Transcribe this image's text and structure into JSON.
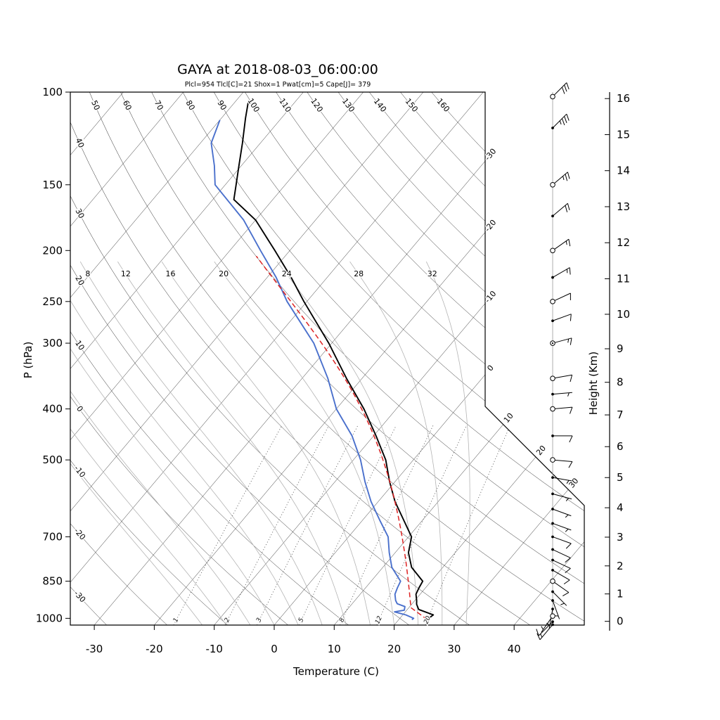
{
  "chart_data": {
    "type": "skewt_log_p",
    "title": "GAYA at 2018-08-03_06:00:00",
    "subtitle": "Plcl=954 Tlcl[C]=21 Shox=1 Pwat[cm]=5 Cape[J]= 379",
    "pressure_axis_label": "P (hPa)",
    "temperature_axis_label": "Temperature (C)",
    "height_axis_label": "Height (Km)",
    "pressure_ticks": [
      100,
      150,
      200,
      250,
      300,
      400,
      500,
      700,
      850,
      1000
    ],
    "temperature_ticks": [
      -30,
      -20,
      -10,
      0,
      10,
      20,
      30,
      40
    ],
    "height_ticks": [
      0,
      1,
      2,
      3,
      4,
      5,
      6,
      7,
      8,
      9,
      10,
      11,
      12,
      13,
      14,
      15,
      16
    ],
    "pressure_range_hpa": [
      100,
      1030
    ],
    "isotherms": {
      "min": -110,
      "max": 40,
      "step": 10,
      "right_edge_labels": [
        -30,
        -20,
        -10,
        0
      ],
      "cut_edge_labels": [
        10,
        20,
        30
      ]
    },
    "dry_adiabats": {
      "min": -30,
      "max": 160,
      "step": 10,
      "top_labels": [
        50,
        60,
        70,
        80,
        90,
        100,
        110,
        120,
        130,
        140,
        150,
        160
      ],
      "left_labels": [
        40,
        30,
        20,
        10,
        0,
        -10,
        -20,
        -30
      ]
    },
    "moist_adiabats": {
      "values": [
        -12,
        -8,
        -4,
        0,
        4,
        8,
        12,
        16,
        20,
        24,
        28,
        32
      ],
      "labeled": [
        8,
        12,
        16,
        20,
        24,
        28,
        32
      ],
      "label_pressure": 222,
      "top_pressure": 210
    },
    "mixing_ratio_lines": {
      "values_g_kg": [
        1,
        2,
        3,
        5,
        8,
        12,
        20
      ],
      "top_pressure": 420,
      "label_pressure": 1013
    },
    "profiles": {
      "temperature": [
        [
          1006,
          24.6
        ],
        [
          1000,
          24.8
        ],
        [
          985,
          25.1
        ],
        [
          962,
          21.9
        ],
        [
          940,
          20.8
        ],
        [
          925,
          20.3
        ],
        [
          900,
          19.3
        ],
        [
          875,
          18.9
        ],
        [
          850,
          18.6
        ],
        [
          800,
          14.8
        ],
        [
          750,
          12.2
        ],
        [
          700,
          10.5
        ],
        [
          650,
          6.8
        ],
        [
          600,
          2.8
        ],
        [
          550,
          -0.9
        ],
        [
          500,
          -4.6
        ],
        [
          450,
          -9.6
        ],
        [
          400,
          -15.4
        ],
        [
          350,
          -22.6
        ],
        [
          300,
          -30.5
        ],
        [
          250,
          -40.5
        ],
        [
          225,
          -46.0
        ],
        [
          200,
          -52.5
        ],
        [
          175,
          -60.0
        ],
        [
          160,
          -66.5
        ],
        [
          150,
          -68.2
        ],
        [
          138,
          -70.4
        ],
        [
          125,
          -73.0
        ],
        [
          112,
          -76.0
        ],
        [
          104,
          -77.9
        ]
      ],
      "dewpoint": [
        [
          1006,
          22.2
        ],
        [
          1000,
          22.3
        ],
        [
          985,
          20.5
        ],
        [
          972,
          18.2
        ],
        [
          965,
          19.6
        ],
        [
          950,
          19.2
        ],
        [
          938,
          17.5
        ],
        [
          925,
          16.8
        ],
        [
          900,
          15.8
        ],
        [
          875,
          15.3
        ],
        [
          850,
          14.9
        ],
        [
          800,
          11.5
        ],
        [
          750,
          9.0
        ],
        [
          700,
          6.6
        ],
        [
          650,
          2.8
        ],
        [
          600,
          -1.2
        ],
        [
          550,
          -5.0
        ],
        [
          500,
          -8.8
        ],
        [
          450,
          -13.6
        ],
        [
          400,
          -20.0
        ],
        [
          350,
          -25.7
        ],
        [
          300,
          -33.0
        ],
        [
          250,
          -43.3
        ],
        [
          225,
          -48.5
        ],
        [
          200,
          -54.9
        ],
        [
          175,
          -62.0
        ],
        [
          150,
          -71.7
        ],
        [
          138,
          -74.5
        ],
        [
          125,
          -78.2
        ],
        [
          113,
          -80.0
        ]
      ],
      "parcel": {
        "surface_p": 1006,
        "surface_t": 24.8,
        "lcl_p": 954,
        "lcl_t": 21,
        "top_p": 205
      }
    },
    "wind_barbs": [
      [
        102,
        45,
        30,
        "circle"
      ],
      [
        117,
        45,
        35,
        "dot"
      ],
      [
        150,
        50,
        25,
        "circle"
      ],
      [
        172,
        50,
        20,
        "dot"
      ],
      [
        200,
        55,
        15,
        "circle"
      ],
      [
        225,
        60,
        15,
        "dot"
      ],
      [
        250,
        65,
        10,
        "circle"
      ],
      [
        272,
        70,
        10,
        "dot"
      ],
      [
        300,
        75,
        15,
        "circledot"
      ],
      [
        350,
        80,
        10,
        "circle"
      ],
      [
        375,
        85,
        5,
        "dot"
      ],
      [
        400,
        85,
        10,
        "circle"
      ],
      [
        450,
        90,
        10,
        "dot"
      ],
      [
        500,
        95,
        10,
        "circle"
      ],
      [
        540,
        100,
        5,
        "dot"
      ],
      [
        580,
        105,
        5,
        "dot"
      ],
      [
        620,
        110,
        5,
        "dot"
      ],
      [
        660,
        110,
        5,
        "dot"
      ],
      [
        700,
        110,
        10,
        "dot"
      ],
      [
        740,
        115,
        10,
        "dot"
      ],
      [
        775,
        115,
        10,
        "dot"
      ],
      [
        810,
        120,
        10,
        "dot"
      ],
      [
        850,
        125,
        10,
        "circle"
      ],
      [
        890,
        135,
        5,
        "dot"
      ],
      [
        925,
        160,
        5,
        "dot"
      ],
      [
        960,
        190,
        5,
        "dot"
      ],
      [
        990,
        215,
        5,
        "circle"
      ],
      [
        1015,
        225,
        10,
        "dot"
      ],
      [
        1028,
        220,
        15,
        "dot"
      ]
    ],
    "colors": {
      "temperature": "#000000",
      "dewpoint": "#4a70cc",
      "parcel": "#dd2222",
      "moist_adiabat": "#b4b4b4",
      "grid": "#2a2a2a",
      "mixing_ratio": "#3a3a3a",
      "subtitle": "#c2552d",
      "barb": "#000000"
    }
  }
}
